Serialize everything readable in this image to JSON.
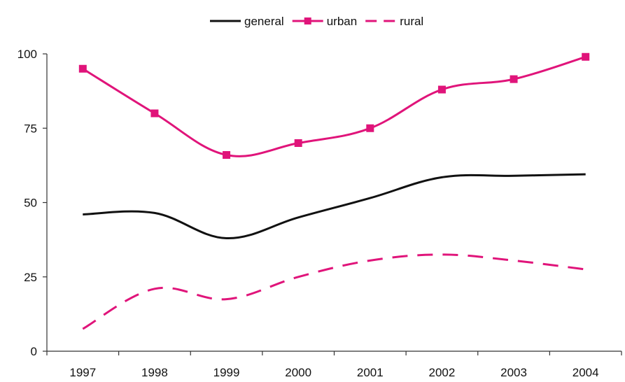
{
  "chart_data": {
    "type": "line",
    "categories": [
      "1997",
      "1998",
      "1999",
      "2000",
      "2001",
      "2002",
      "2003",
      "2004"
    ],
    "series": [
      {
        "name": "general",
        "values": [
          46,
          46.5,
          38,
          45,
          51.5,
          58.5,
          59,
          59.5
        ],
        "color": "#111111",
        "style": "solid",
        "markers": false
      },
      {
        "name": "urban",
        "values": [
          95,
          80,
          66,
          70,
          75,
          88,
          91.5,
          99
        ],
        "color": "#e0147a",
        "style": "solid",
        "markers": true
      },
      {
        "name": "rural",
        "values": [
          7.5,
          21,
          17.5,
          25,
          30.5,
          32.5,
          30.5,
          27.5
        ],
        "color": "#e0147a",
        "style": "dashed",
        "markers": false
      }
    ],
    "ylim": [
      0,
      100
    ],
    "yticks": [
      0,
      25,
      50,
      75,
      100
    ],
    "xlabel": "",
    "ylabel": "",
    "title": "",
    "grid": false,
    "legend_position": "top-center"
  }
}
